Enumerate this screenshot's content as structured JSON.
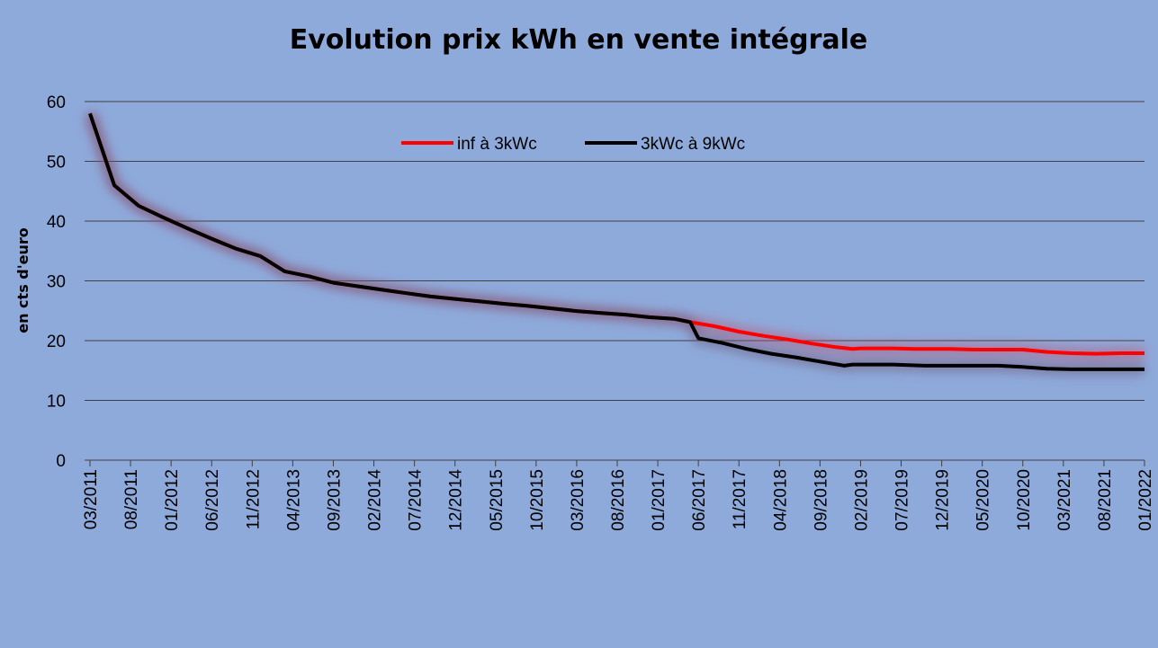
{
  "chart_data": {
    "type": "line",
    "title": "Evolution prix kWh en vente intégrale",
    "xlabel": "",
    "ylabel": "en cts d'euro",
    "ylim": [
      0,
      60
    ],
    "yticks": [
      0,
      10,
      20,
      30,
      40,
      50,
      60
    ],
    "grid": true,
    "legend": "top-center",
    "x_tick_labels": [
      "03/2011",
      "08/2011",
      "01/2012",
      "06/2012",
      "11/2012",
      "04/2013",
      "09/2013",
      "02/2014",
      "07/2014",
      "12/2014",
      "05/2015",
      "10/2015",
      "03/2016",
      "08/2016",
      "01/2017",
      "06/2017",
      "11/2017",
      "04/2018",
      "09/2018",
      "02/2019",
      "07/2019",
      "12/2019",
      "05/2020",
      "10/2020",
      "03/2021",
      "08/2021",
      "01/2022"
    ],
    "series": [
      {
        "name": "inf à 3kWc",
        "color": "#ff0000",
        "points": [
          {
            "x": "03/2011",
            "y": 58
          },
          {
            "x": "06/2011",
            "y": 46
          },
          {
            "x": "09/2011",
            "y": 42.55
          },
          {
            "x": "12/2011",
            "y": 40.63
          },
          {
            "x": "03/2012",
            "y": 38.8
          },
          {
            "x": "06/2012",
            "y": 37.06
          },
          {
            "x": "09/2012",
            "y": 35.39
          },
          {
            "x": "12/2012",
            "y": 34.15
          },
          {
            "x": "03/2013",
            "y": 31.59
          },
          {
            "x": "06/2013",
            "y": 30.77
          },
          {
            "x": "09/2013",
            "y": 29.69
          },
          {
            "x": "12/2013",
            "y": 29.1
          },
          {
            "x": "03/2014",
            "y": 28.51
          },
          {
            "x": "06/2014",
            "y": 27.94
          },
          {
            "x": "09/2014",
            "y": 27.38
          },
          {
            "x": "12/2014",
            "y": 26.97
          },
          {
            "x": "03/2015",
            "y": 26.57
          },
          {
            "x": "06/2015",
            "y": 26.17
          },
          {
            "x": "09/2015",
            "y": 25.8
          },
          {
            "x": "12/2015",
            "y": 25.39
          },
          {
            "x": "03/2016",
            "y": 24.95
          },
          {
            "x": "06/2016",
            "y": 24.63
          },
          {
            "x": "09/2016",
            "y": 24.35
          },
          {
            "x": "12/2016",
            "y": 23.91
          },
          {
            "x": "03/2017",
            "y": 23.66
          },
          {
            "x": "05/2017",
            "y": 23.1
          },
          {
            "x": "08/2017",
            "y": 22.4
          },
          {
            "x": "11/2017",
            "y": 21.5
          },
          {
            "x": "02/2018",
            "y": 20.8
          },
          {
            "x": "05/2018",
            "y": 20.2
          },
          {
            "x": "08/2018",
            "y": 19.5
          },
          {
            "x": "11/2018",
            "y": 18.9
          },
          {
            "x": "01/2019",
            "y": 18.6
          },
          {
            "x": "02/2019",
            "y": 18.7
          },
          {
            "x": "06/2019",
            "y": 18.7
          },
          {
            "x": "09/2019",
            "y": 18.6
          },
          {
            "x": "01/2020",
            "y": 18.6
          },
          {
            "x": "04/2020",
            "y": 18.5
          },
          {
            "x": "07/2020",
            "y": 18.5
          },
          {
            "x": "10/2020",
            "y": 18.5
          },
          {
            "x": "01/2021",
            "y": 18.1
          },
          {
            "x": "04/2021",
            "y": 17.9
          },
          {
            "x": "07/2021",
            "y": 17.8
          },
          {
            "x": "10/2021",
            "y": 17.9
          },
          {
            "x": "01/2022",
            "y": 17.9
          }
        ]
      },
      {
        "name": "3kWc à 9kWc",
        "color": "#000000",
        "points": [
          {
            "x": "03/2011",
            "y": 58
          },
          {
            "x": "06/2011",
            "y": 46
          },
          {
            "x": "09/2011",
            "y": 42.55
          },
          {
            "x": "12/2011",
            "y": 40.63
          },
          {
            "x": "03/2012",
            "y": 38.8
          },
          {
            "x": "06/2012",
            "y": 37.06
          },
          {
            "x": "09/2012",
            "y": 35.39
          },
          {
            "x": "12/2012",
            "y": 34.15
          },
          {
            "x": "03/2013",
            "y": 31.59
          },
          {
            "x": "06/2013",
            "y": 30.77
          },
          {
            "x": "09/2013",
            "y": 29.69
          },
          {
            "x": "12/2013",
            "y": 29.1
          },
          {
            "x": "03/2014",
            "y": 28.51
          },
          {
            "x": "06/2014",
            "y": 27.94
          },
          {
            "x": "09/2014",
            "y": 27.38
          },
          {
            "x": "12/2014",
            "y": 26.97
          },
          {
            "x": "03/2015",
            "y": 26.57
          },
          {
            "x": "06/2015",
            "y": 26.17
          },
          {
            "x": "09/2015",
            "y": 25.8
          },
          {
            "x": "12/2015",
            "y": 25.39
          },
          {
            "x": "03/2016",
            "y": 24.95
          },
          {
            "x": "06/2016",
            "y": 24.63
          },
          {
            "x": "09/2016",
            "y": 24.35
          },
          {
            "x": "12/2016",
            "y": 23.91
          },
          {
            "x": "03/2017",
            "y": 23.66
          },
          {
            "x": "05/2017",
            "y": 23.1
          },
          {
            "x": "06/2017",
            "y": 20.4
          },
          {
            "x": "09/2017",
            "y": 19.6
          },
          {
            "x": "12/2017",
            "y": 18.6
          },
          {
            "x": "03/2018",
            "y": 17.8
          },
          {
            "x": "06/2018",
            "y": 17.2
          },
          {
            "x": "09/2018",
            "y": 16.5
          },
          {
            "x": "12/2018",
            "y": 15.8
          },
          {
            "x": "01/2019",
            "y": 16
          },
          {
            "x": "06/2019",
            "y": 16
          },
          {
            "x": "10/2019",
            "y": 15.8
          },
          {
            "x": "01/2020",
            "y": 15.8
          },
          {
            "x": "07/2020",
            "y": 15.8
          },
          {
            "x": "10/2020",
            "y": 15.6
          },
          {
            "x": "01/2021",
            "y": 15.3
          },
          {
            "x": "04/2021",
            "y": 15.2
          },
          {
            "x": "07/2021",
            "y": 15.2
          },
          {
            "x": "10/2021",
            "y": 15.2
          },
          {
            "x": "01/2022",
            "y": 15.2
          }
        ]
      }
    ]
  }
}
